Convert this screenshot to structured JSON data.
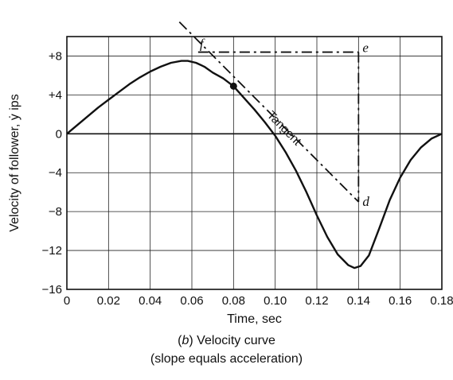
{
  "chart_data": {
    "type": "line",
    "title": "",
    "xlabel": "Time, sec",
    "ylabel": "Velocity of follower, ẏ ips",
    "xlim": [
      0,
      0.18
    ],
    "ylim": [
      -16,
      10
    ],
    "grid": true,
    "x_ticks": [
      0,
      0.02,
      0.04,
      0.06,
      0.08,
      0.1,
      0.12,
      0.14,
      0.16,
      0.18
    ],
    "x_tick_labels": [
      "0",
      "0.02",
      "0.04",
      "0.06",
      "0.08",
      "0.10",
      "0.12",
      "0.14",
      "0.16",
      "0.18"
    ],
    "y_ticks": [
      8,
      4,
      0,
      -4,
      -8,
      -12,
      -16
    ],
    "y_tick_labels": [
      "+8",
      "+4",
      "0",
      "−4",
      "−8",
      "−12",
      "−16"
    ],
    "series": [
      {
        "name": "",
        "style": "solid",
        "x": [
          0,
          0.005,
          0.01,
          0.015,
          0.02,
          0.025,
          0.03,
          0.035,
          0.04,
          0.045,
          0.05,
          0.055,
          0.058,
          0.062,
          0.066,
          0.07,
          0.075,
          0.08,
          0.085,
          0.09,
          0.095,
          0.1,
          0.105,
          0.11,
          0.115,
          0.12,
          0.125,
          0.13,
          0.135,
          0.138,
          0.141,
          0.145,
          0.15,
          0.155,
          0.16,
          0.165,
          0.17,
          0.175,
          0.18
        ],
        "y": [
          0,
          0.9,
          1.8,
          2.7,
          3.5,
          4.3,
          5.1,
          5.8,
          6.4,
          6.9,
          7.3,
          7.5,
          7.5,
          7.3,
          6.9,
          6.3,
          5.7,
          4.9,
          3.7,
          2.5,
          1.2,
          -0.2,
          -1.9,
          -3.8,
          -6.0,
          -8.4,
          -10.6,
          -12.4,
          -13.5,
          -13.8,
          -13.6,
          -12.5,
          -9.7,
          -6.8,
          -4.5,
          -2.7,
          -1.4,
          -0.5,
          0
        ]
      }
    ],
    "tangent_point": {
      "x": 0.08,
      "y": 4.9
    },
    "tangent_line": {
      "x": [
        0.054,
        0.14
      ],
      "y": [
        11.5,
        -7.0
      ]
    },
    "construction_lines": [
      {
        "x": [
          0.063,
          0.14
        ],
        "y": [
          8.4,
          8.4
        ]
      },
      {
        "x": [
          0.14,
          0.14
        ],
        "y": [
          8.4,
          -7.0
        ]
      }
    ],
    "annotations": [
      {
        "text": "f",
        "x": 0.063,
        "y": 8.4,
        "anchor": "above"
      },
      {
        "text": "e",
        "x": 0.14,
        "y": 8.4,
        "anchor": "right"
      },
      {
        "text": "d",
        "x": 0.14,
        "y": -7.0,
        "anchor": "right"
      }
    ],
    "tangent_label": {
      "text": "Tangent",
      "x": 0.103,
      "y": 0.3
    }
  },
  "caption": {
    "line1_prefix": "(",
    "line1_italic": "b",
    "line1_suffix": ") Velocity curve",
    "line2": "(slope equals acceleration)"
  }
}
